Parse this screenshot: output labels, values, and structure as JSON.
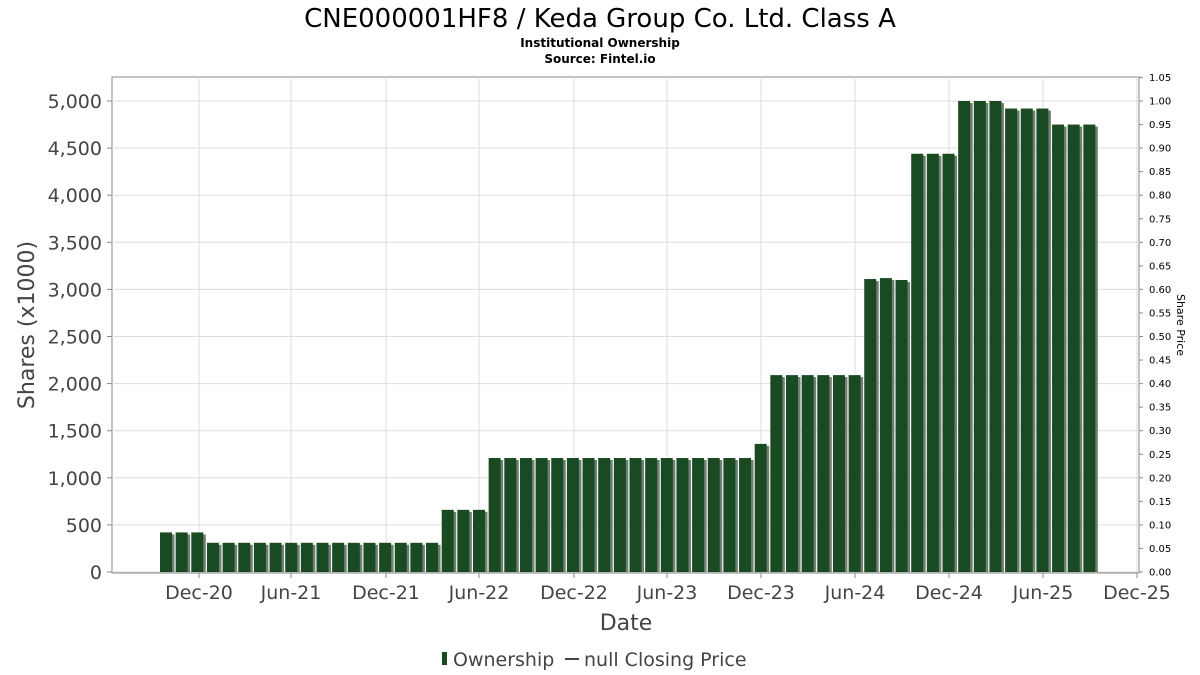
{
  "chart_data": {
    "type": "bar",
    "title": "CNE000001HF8 / Keda Group Co. Ltd. Class A",
    "subtitle_lines": [
      "Institutional Ownership",
      "Source: Fintel.io"
    ],
    "xlabel": "Date",
    "ylabel": "Shares (x1000)",
    "ylabel_right": "Share Price",
    "ylim": [
      0,
      5200
    ],
    "ylim_right": [
      0,
      1.05
    ],
    "yticks": [
      "0",
      "500",
      "1,000",
      "1,500",
      "2,000",
      "2,500",
      "3,000",
      "3,500",
      "4,000",
      "4,500",
      "5,000"
    ],
    "yticks_right": [
      "0.00",
      "0.05",
      "0.10",
      "0.15",
      "0.20",
      "0.25",
      "0.30",
      "0.35",
      "0.40",
      "0.45",
      "0.50",
      "0.55",
      "0.60",
      "0.65",
      "0.70",
      "0.75",
      "0.80",
      "0.85",
      "0.90",
      "0.95",
      "1.00",
      "1.05"
    ],
    "xticks": [
      "Dec-20",
      "Jun-21",
      "Dec-21",
      "Jun-22",
      "Dec-22",
      "Jun-23",
      "Dec-23",
      "Jun-24",
      "Dec-24",
      "Jun-25",
      "Dec-25"
    ],
    "grid": true,
    "legend": [
      "Ownership",
      "null Closing Price"
    ],
    "legend_position": "bottom",
    "series": [
      {
        "name": "Ownership",
        "color": "#1a4a22",
        "values": [
          420,
          420,
          420,
          310,
          310,
          310,
          310,
          310,
          310,
          310,
          310,
          310,
          310,
          310,
          310,
          310,
          310,
          310,
          660,
          660,
          660,
          1210,
          1210,
          1210,
          1210,
          1210,
          1210,
          1210,
          1210,
          1210,
          1210,
          1210,
          1210,
          1210,
          1210,
          1210,
          1210,
          1210,
          1360,
          2090,
          2090,
          2090,
          2090,
          2090,
          2090,
          3110,
          3120,
          3100,
          4440,
          4440,
          4440,
          5000,
          5000,
          5000,
          4920,
          4920,
          4920,
          4750,
          4750,
          4750
        ]
      }
    ]
  }
}
